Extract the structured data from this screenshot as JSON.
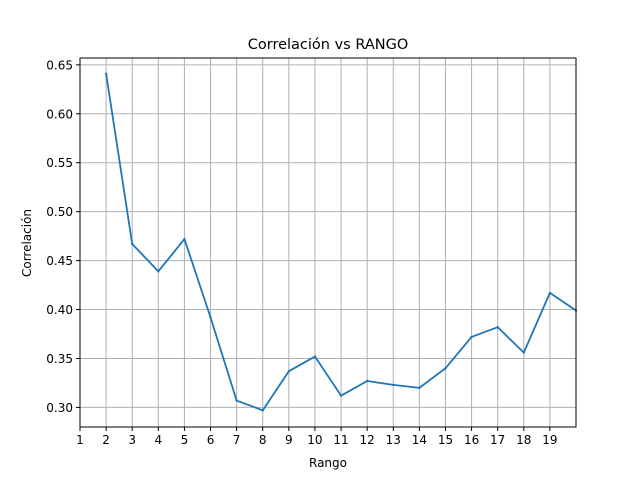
{
  "chart_data": {
    "type": "line",
    "title": "Correlación vs RANGO",
    "xlabel": "Rango",
    "ylabel": "Correlación",
    "xlim": [
      1,
      20
    ],
    "ylim": [
      0.28,
      0.657
    ],
    "x_ticks": [
      1,
      2,
      3,
      4,
      5,
      6,
      7,
      8,
      9,
      10,
      11,
      12,
      13,
      14,
      15,
      16,
      17,
      18,
      19
    ],
    "y_ticks": [
      0.3,
      0.35,
      0.4,
      0.45,
      0.5,
      0.55,
      0.6,
      0.65
    ],
    "y_tick_labels": [
      "0.30",
      "0.35",
      "0.40",
      "0.45",
      "0.50",
      "0.55",
      "0.60",
      "0.65"
    ],
    "grid": true,
    "series": [
      {
        "color": "#1f77b4",
        "x": [
          2,
          3,
          4,
          5,
          6,
          7,
          8,
          9,
          10,
          11,
          12,
          13,
          14,
          15,
          16,
          17,
          18,
          19,
          20
        ],
        "y": [
          0.641,
          0.467,
          0.439,
          0.472,
          0.392,
          0.307,
          0.297,
          0.337,
          0.352,
          0.312,
          0.327,
          0.323,
          0.32,
          0.34,
          0.372,
          0.382,
          0.356,
          0.417,
          0.399
        ]
      }
    ]
  }
}
